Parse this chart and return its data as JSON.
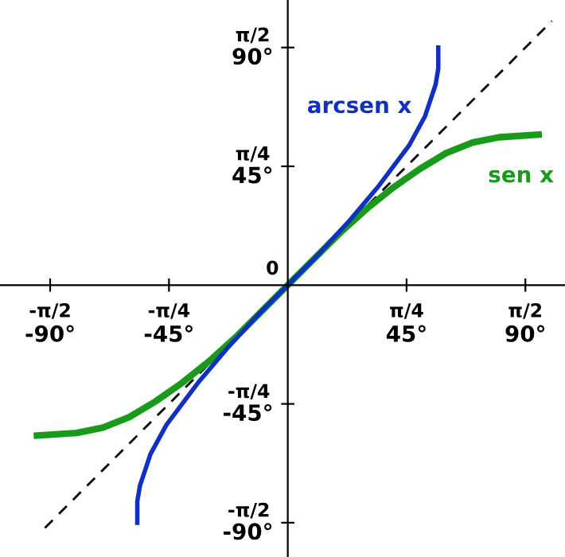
{
  "chart_data": {
    "type": "line",
    "xlim": [
      -109,
      105
    ],
    "ylim": [
      -103,
      108
    ],
    "xticks": [
      {
        "value": -90,
        "label": "-90°"
      },
      {
        "value": -45,
        "label": "-45°"
      },
      {
        "value": 45,
        "label": "45°"
      },
      {
        "value": 90,
        "label": "90°"
      }
    ],
    "yticks": [
      {
        "value": -90,
        "label": "-90°"
      },
      {
        "value": -45,
        "label": "-45°"
      },
      {
        "value": 45,
        "label": "45°"
      },
      {
        "value": 90,
        "label": "90°"
      }
    ],
    "annotations": [
      "-π/2",
      "-π/4",
      "π/4",
      "π/2",
      "-π/2",
      "-π/4",
      "π/4",
      "π/2",
      {
        "text": "0",
        "x": 0,
        "y": 0
      }
    ],
    "grid": false,
    "marker": "none",
    "series": [
      {
        "color": "#000000",
        "line_style": "dashed",
        "x": [
          -92,
          100
        ],
        "values": [
          -92,
          100
        ]
      },
      {
        "name": "sen x",
        "color": "#1a9a1a",
        "line_style": "solid",
        "x": [
          -95,
          -80,
          -70,
          -60,
          -50,
          -40,
          -30,
          -20,
          -10,
          0,
          10,
          20,
          30,
          40,
          50,
          60,
          70,
          80,
          95
        ],
        "values": [
          -57,
          -56,
          -54,
          -50,
          -44,
          -37,
          -29,
          -20,
          -10,
          0,
          10,
          20,
          29,
          37,
          44,
          50,
          54,
          56,
          57
        ]
      },
      {
        "name": "arcsen x",
        "color": "#1030c0",
        "line_style": "solid",
        "x": [
          -57,
          -57,
          -56,
          -54,
          -52,
          -46,
          -34,
          -23,
          -11,
          0,
          11,
          23,
          34,
          46,
          52,
          54,
          56,
          57,
          57
        ],
        "values": [
          -90,
          -82,
          -76,
          -70,
          -64,
          -53,
          -37,
          -24,
          -11,
          0,
          11,
          24,
          37,
          53,
          64,
          70,
          76,
          82,
          90
        ]
      }
    ]
  }
}
